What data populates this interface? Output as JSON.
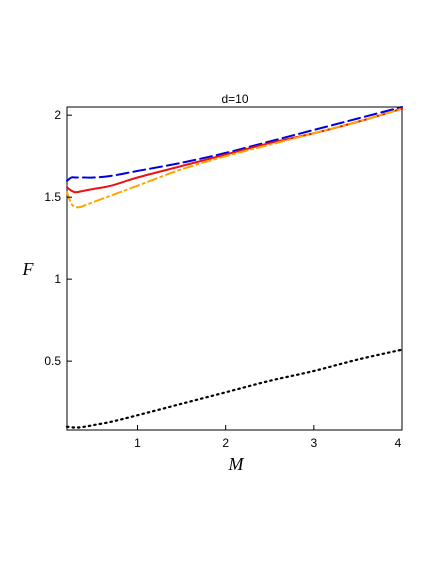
{
  "chart_data": {
    "type": "line",
    "title": "d=10",
    "xlabel": "M",
    "ylabel": "F",
    "xlim": [
      0.2,
      4.0
    ],
    "ylim": [
      0.08,
      2.05
    ],
    "xticks": [
      1,
      2,
      3,
      4
    ],
    "yticks": [
      0.5,
      1,
      1.5,
      2
    ],
    "xtick_labels": [
      "1",
      "2",
      "3",
      "4"
    ],
    "ytick_labels": [
      "0.5",
      "1",
      "1.5",
      "2"
    ],
    "grid": false,
    "legend": "none",
    "series": [
      {
        "color": "#0000dd",
        "dash": "dashed",
        "x": [
          0.2,
          0.25,
          0.3,
          0.4,
          0.5,
          0.7,
          1.0,
          1.5,
          2.0,
          2.5,
          3.0,
          3.5,
          4.0
        ],
        "y": [
          1.6,
          1.62,
          1.62,
          1.62,
          1.62,
          1.63,
          1.66,
          1.71,
          1.77,
          1.84,
          1.91,
          1.98,
          2.05
        ]
      },
      {
        "color": "#ee1111",
        "dash": "solid",
        "x": [
          0.2,
          0.25,
          0.3,
          0.4,
          0.5,
          0.7,
          1.0,
          1.5,
          2.0,
          2.5,
          3.0,
          3.5,
          4.0
        ],
        "y": [
          1.56,
          1.54,
          1.53,
          1.54,
          1.55,
          1.57,
          1.62,
          1.69,
          1.76,
          1.83,
          1.89,
          1.96,
          2.04
        ]
      },
      {
        "color": "#ffa500",
        "dash": "dashdot",
        "x": [
          0.2,
          0.25,
          0.3,
          0.35,
          0.4,
          0.5,
          0.7,
          1.0,
          1.5,
          2.0,
          2.5,
          3.0,
          3.5,
          4.0
        ],
        "y": [
          1.53,
          1.46,
          1.44,
          1.44,
          1.45,
          1.47,
          1.51,
          1.57,
          1.67,
          1.75,
          1.82,
          1.89,
          1.96,
          2.04
        ]
      },
      {
        "color": "#000000",
        "dash": "dotted",
        "x": [
          0.2,
          0.3,
          0.4,
          0.5,
          0.7,
          1.0,
          1.5,
          2.0,
          2.5,
          3.0,
          3.5,
          4.0
        ],
        "y": [
          0.1,
          0.095,
          0.1,
          0.11,
          0.13,
          0.17,
          0.24,
          0.31,
          0.38,
          0.44,
          0.51,
          0.57
        ]
      }
    ]
  }
}
